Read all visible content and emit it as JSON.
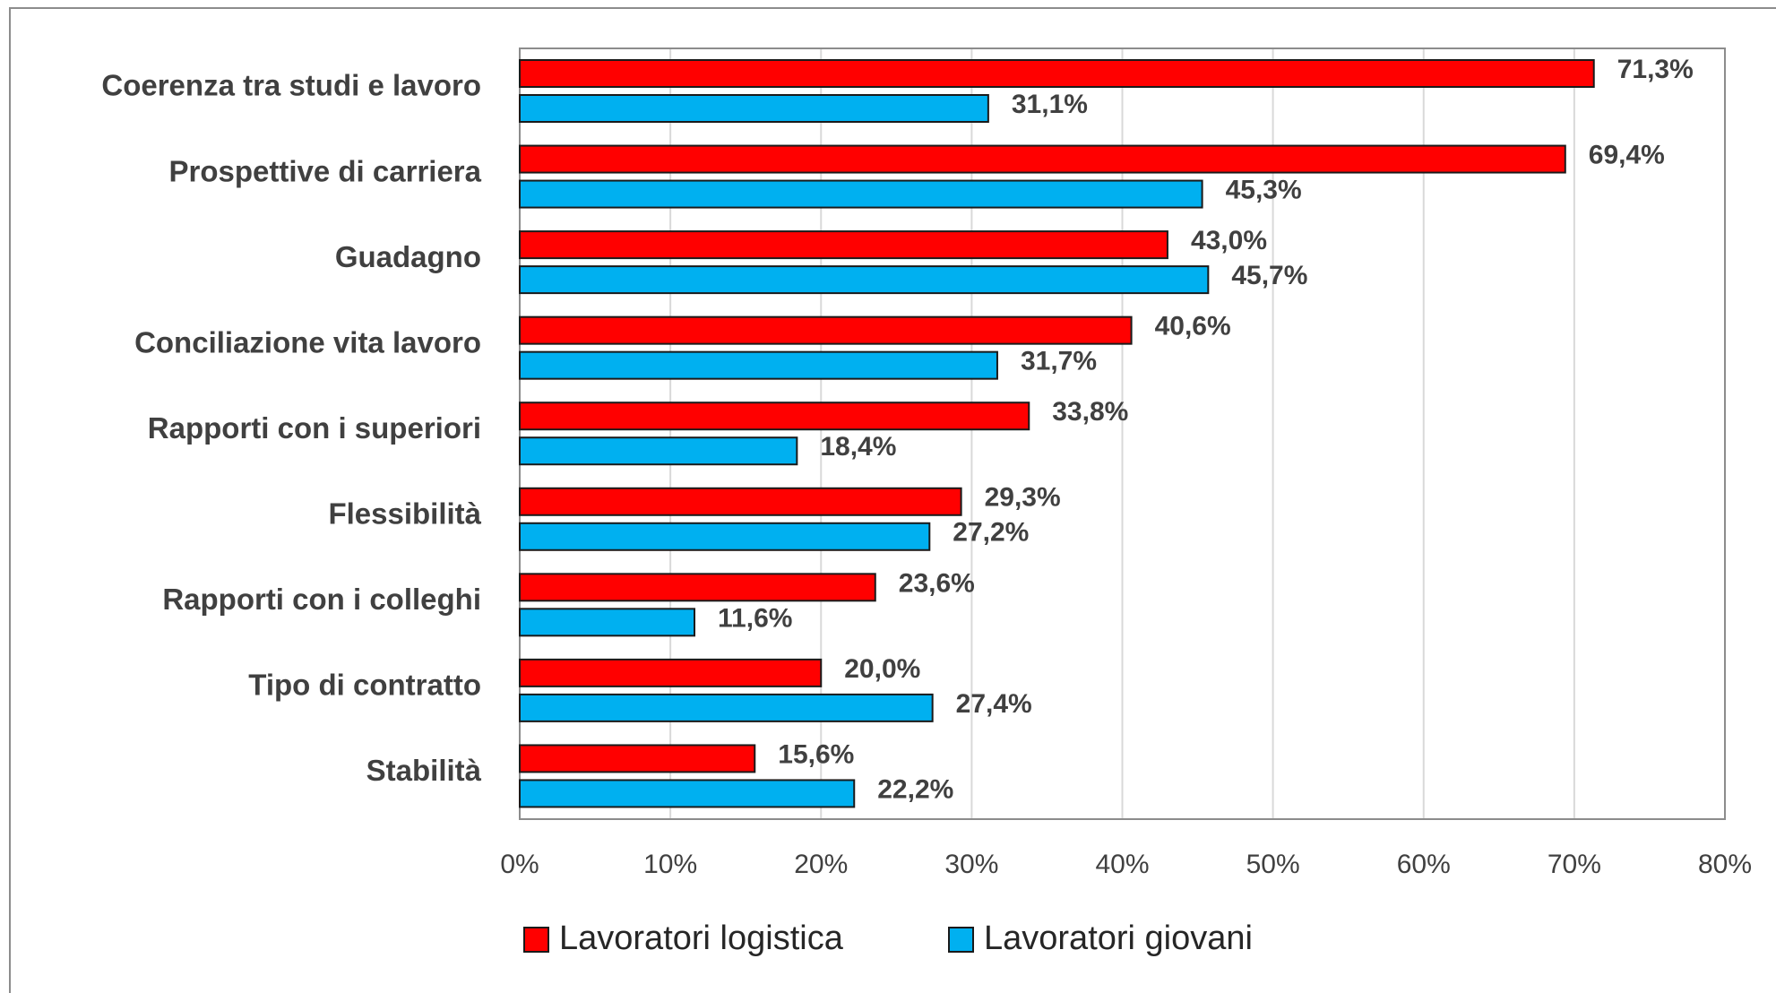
{
  "chart_data": {
    "type": "bar",
    "orientation": "horizontal",
    "categories": [
      "Coerenza tra studi e lavoro",
      "Prospettive di carriera",
      "Guadagno",
      "Conciliazione vita lavoro",
      "Rapporti con i superiori",
      "Flessibilità",
      "Rapporti con i colleghi",
      "Tipo di contratto",
      "Stabilità"
    ],
    "series": [
      {
        "name": "Lavoratori logistica",
        "color": "#ff0000",
        "values": [
          71.3,
          69.4,
          43.0,
          40.6,
          33.8,
          29.3,
          23.6,
          20.0,
          15.6
        ],
        "value_labels": [
          "71,3%",
          "69,4%",
          "43,0%",
          "40,6%",
          "33,8%",
          "29,3%",
          "23,6%",
          "20,0%",
          "15,6%"
        ]
      },
      {
        "name": "Lavoratori giovani",
        "color": "#00b0f0",
        "values": [
          31.1,
          45.3,
          45.7,
          31.7,
          18.4,
          27.2,
          11.6,
          27.4,
          22.2
        ],
        "value_labels": [
          "31,1%",
          "45,3%",
          "45,7%",
          "31,7%",
          "18,4%",
          "27,2%",
          "11,6%",
          "27,4%",
          "22,2%"
        ]
      }
    ],
    "xlim": [
      0,
      80
    ],
    "xticks": [
      {
        "value": 0,
        "label": "0%"
      },
      {
        "value": 10,
        "label": "10%"
      },
      {
        "value": 20,
        "label": "20%"
      },
      {
        "value": 30,
        "label": "30%"
      },
      {
        "value": 40,
        "label": "40%"
      },
      {
        "value": 50,
        "label": "50%"
      },
      {
        "value": 60,
        "label": "60%"
      },
      {
        "value": 70,
        "label": "70%"
      },
      {
        "value": 80,
        "label": "80%"
      }
    ],
    "grid": true,
    "legend": "bottom"
  }
}
